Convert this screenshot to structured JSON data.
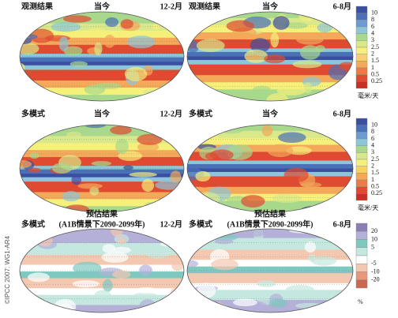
{
  "panels": [
    {
      "source": "观测结果",
      "period": "当今",
      "season": "12-2月"
    },
    {
      "source": "观测结果",
      "period": "当今",
      "season": "6-8月"
    },
    {
      "source": "多模式",
      "period": "当今",
      "season": "12-2月"
    },
    {
      "source": "多模式",
      "period": "当今",
      "season": "6-8月"
    },
    {
      "source": "多模式",
      "heading": "预估结果",
      "period": "(A1B情景下2090-2099年)",
      "season": "12-2月"
    },
    {
      "source": "多模式",
      "heading": "预估结果",
      "period": "(A1B情景下2090-2099年)",
      "season": "6-8月"
    }
  ],
  "legends": [
    {
      "labels": [
        "10",
        "8",
        "6",
        "4",
        "3",
        "2.5",
        "2",
        "1.5",
        "1",
        "0.5",
        "0.25"
      ],
      "unit": "毫米/天"
    },
    {
      "labels": [
        "10",
        "8",
        "6",
        "4",
        "3",
        "2.5",
        "2",
        "1.5",
        "1",
        "0.5",
        "0.25"
      ],
      "unit": "毫米/天"
    },
    {
      "labels": [
        "20",
        "10",
        "5",
        "-5",
        "-10",
        "-20"
      ],
      "unit": "%"
    }
  ],
  "credit": "©IPCC 2007: WG1-AR4"
}
